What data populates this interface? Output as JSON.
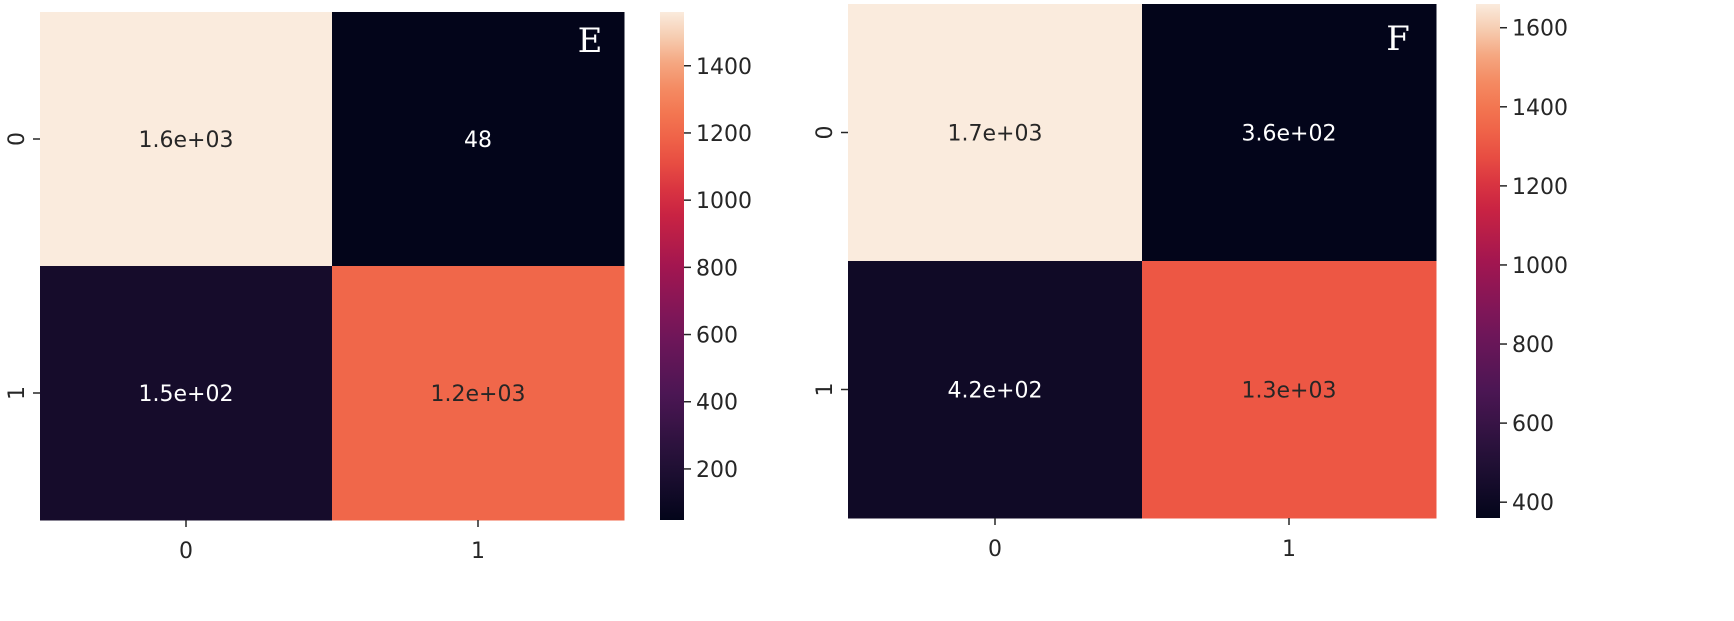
{
  "chart_data": [
    {
      "type": "heatmap",
      "panel_label": "E",
      "x_categories": [
        "0",
        "1"
      ],
      "y_categories": [
        "0",
        "1"
      ],
      "values": [
        [
          1600,
          48
        ],
        [
          150,
          1200
        ]
      ],
      "cell_labels": [
        [
          "1.6e+03",
          "48"
        ],
        [
          "1.5e+02",
          "1.2e+03"
        ]
      ],
      "colorbar": {
        "min": 48,
        "max": 1560,
        "ticks": [
          200,
          400,
          600,
          800,
          1000,
          1200,
          1400
        ]
      },
      "colormap": "rocket",
      "title": "",
      "xlabel": "",
      "ylabel": ""
    },
    {
      "type": "heatmap",
      "panel_label": "F",
      "x_categories": [
        "0",
        "1"
      ],
      "y_categories": [
        "0",
        "1"
      ],
      "values": [
        [
          1700,
          360
        ],
        [
          420,
          1300
        ]
      ],
      "cell_labels": [
        [
          "1.7e+03",
          "3.6e+02"
        ],
        [
          "4.2e+02",
          "1.3e+03"
        ]
      ],
      "colorbar": {
        "min": 360,
        "max": 1660,
        "ticks": [
          400,
          600,
          800,
          1000,
          1200,
          1400,
          1600
        ]
      },
      "colormap": "rocket",
      "title": "",
      "xlabel": "",
      "ylabel": ""
    }
  ]
}
